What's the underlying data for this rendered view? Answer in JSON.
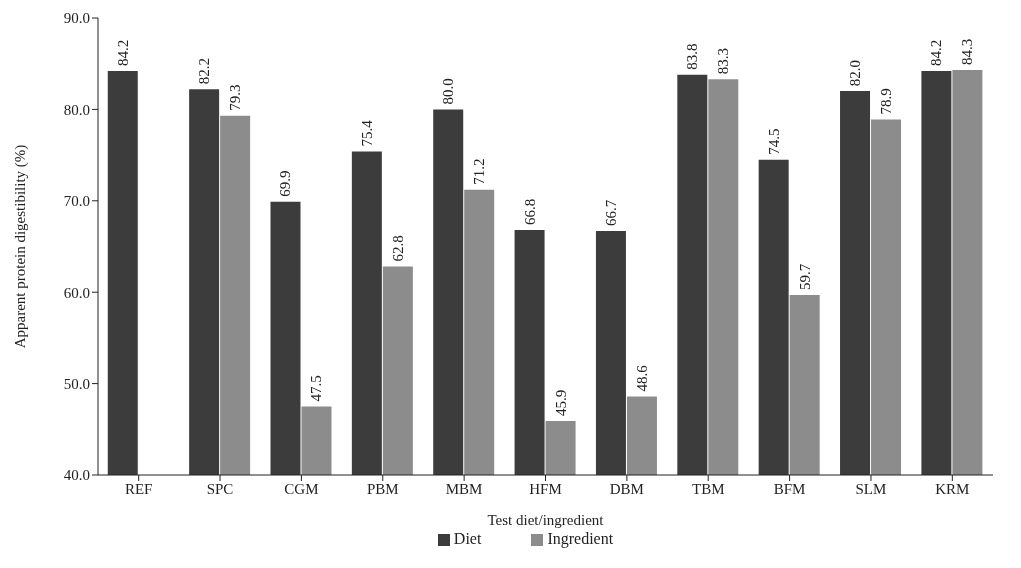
{
  "chart_data": {
    "type": "bar",
    "xlabel": "Test diet/ingredient",
    "ylabel": "Apparent protein digestibility (%)",
    "categories": [
      "REF",
      "SPC",
      "CGM",
      "PBM",
      "MBM",
      "HFM",
      "DBM",
      "TBM",
      "BFM",
      "SLM",
      "KRM"
    ],
    "series": [
      {
        "name": "Diet",
        "color": "#3c3c3c",
        "values": [
          84.2,
          82.2,
          69.9,
          75.4,
          80.0,
          66.8,
          66.7,
          83.8,
          74.5,
          82.0,
          84.2
        ],
        "value_labels": [
          "84.2",
          "82.2",
          "69.9",
          "75.4",
          "80.0",
          "66.8",
          "66.7",
          "83.8",
          "74.5",
          "82.0",
          "84.2"
        ]
      },
      {
        "name": "Ingredient",
        "color": "#8c8c8c",
        "values": [
          null,
          79.3,
          47.5,
          62.8,
          71.2,
          45.9,
          48.6,
          83.3,
          59.7,
          78.9,
          84.3
        ],
        "value_labels": [
          null,
          "79.3",
          "47.5",
          "62.8",
          "71.2",
          "45.9",
          "48.6",
          "83.3",
          "59.7",
          "78.9",
          "84.3"
        ]
      }
    ],
    "ylim": [
      40,
      90
    ],
    "yticks": [
      {
        "value": 40,
        "label": "40.0"
      },
      {
        "value": 50,
        "label": "50.0"
      },
      {
        "value": 60,
        "label": "60.0"
      },
      {
        "value": 70,
        "label": "70.0"
      },
      {
        "value": 80,
        "label": "80.0"
      },
      {
        "value": 90,
        "label": "90.0"
      }
    ],
    "grid": false,
    "legend": "bottom"
  }
}
